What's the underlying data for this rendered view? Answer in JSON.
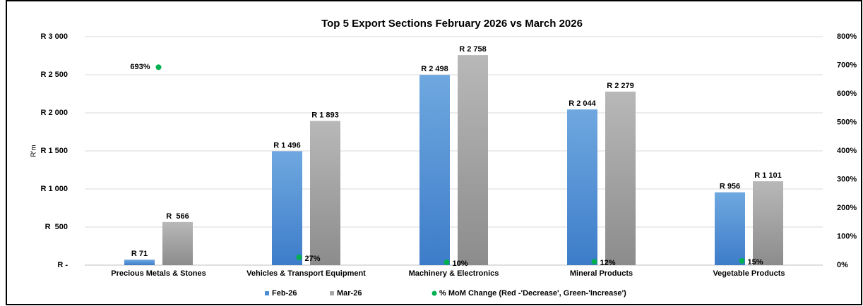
{
  "chart_data": {
    "type": "bar",
    "title": "Top 5 Export Sections February 2026 vs March 2026",
    "y_label": "R'm",
    "categories": [
      "Precious Metals & Stones",
      "Vehicles & Transport Equipment",
      "Machinery & Electronics",
      "Mineral Products",
      "Vegetable Products"
    ],
    "series": [
      {
        "name": "Feb-26",
        "color": "#4a8fd6",
        "values": [
          71,
          1496,
          2498,
          2044,
          956
        ],
        "value_labels": [
          "R 71",
          "R 1 496",
          "R 2 498",
          "R 2 044",
          "R 956"
        ]
      },
      {
        "name": "Mar-26",
        "color": "#a6a6a6",
        "values": [
          566,
          1893,
          2758,
          2279,
          1101
        ],
        "value_labels": [
          "R  566",
          "R 1 893",
          "R 2 758",
          "R 2 279",
          "R 1 101"
        ]
      },
      {
        "name": "% MoM Change (Red -'Decrease', Green-'Increase')",
        "color": "#00b050",
        "axis": "y2",
        "type": "scatter",
        "values": [
          693,
          27,
          10,
          12,
          15
        ],
        "value_labels": [
          "693%",
          "27%",
          "10%",
          "12%",
          "15%"
        ]
      }
    ],
    "ylim": [
      0,
      3000
    ],
    "yticks": [
      {
        "value": 0,
        "label": "R -"
      },
      {
        "value": 500,
        "label": "R  500"
      },
      {
        "value": 1000,
        "label": "R 1 000"
      },
      {
        "value": 1500,
        "label": "R 1 500"
      },
      {
        "value": 2000,
        "label": "R 2 000"
      },
      {
        "value": 2500,
        "label": "R 2 500"
      },
      {
        "value": 3000,
        "label": "R 3 000"
      }
    ],
    "y2lim": [
      0,
      800
    ],
    "y2ticks": [
      {
        "value": 0,
        "label": "0%"
      },
      {
        "value": 100,
        "label": "100%"
      },
      {
        "value": 200,
        "label": "200%"
      },
      {
        "value": 300,
        "label": "300%"
      },
      {
        "value": 400,
        "label": "400%"
      },
      {
        "value": 500,
        "label": "500%"
      },
      {
        "value": 600,
        "label": "600%"
      },
      {
        "value": 700,
        "label": "700%"
      },
      {
        "value": 800,
        "label": "800%"
      }
    ],
    "grid": true,
    "legend": "bottom"
  }
}
